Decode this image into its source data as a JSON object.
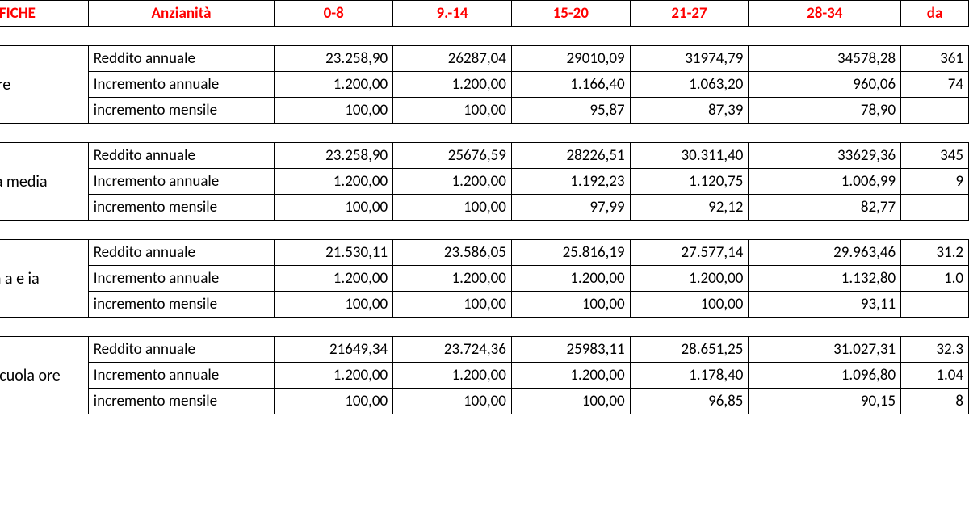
{
  "header": {
    "qualifiche": "LIFICHE",
    "anzianita": "Anzianità",
    "cols": [
      "0-8",
      "9.-14",
      "15-20",
      "21-27",
      "28-34",
      "da"
    ]
  },
  "row_labels": {
    "reddito": "Reddito annuale",
    "incr_ann": "Incremento annuale",
    "incr_men": "incremento mensile"
  },
  "groups": [
    {
      "qual": "nte\na\nriore",
      "reddito": [
        "23.258,90",
        "26287,04",
        "29010,09",
        "31974,79",
        "34578,28",
        "361"
      ],
      "incr_ann": [
        "1.200,00",
        "1.200,00",
        "1.166,40",
        "1.063,20",
        "960,06",
        "74"
      ],
      "incr_men": [
        "100,00",
        "100,00",
        "95,87",
        "87,39",
        "78,90",
        ""
      ]
    },
    {
      "qual": "ocente\nla media",
      "reddito": [
        "23.258,90",
        "25676,59",
        "28226,51",
        "30.311,40",
        "33629,36",
        "345"
      ],
      "incr_ann": [
        "1.200,00",
        "1.200,00",
        "1.192,23",
        "1.120,75",
        "1.006,99",
        "9"
      ],
      "incr_men": [
        "100,00",
        "100,00",
        "97,99",
        "92,12",
        "82,77",
        ""
      ]
    },
    {
      "qual": "te scuola\na e\nia",
      "reddito": [
        "21.530,11",
        "23.586,05",
        "25.816,19",
        "27.577,14",
        "29.963,46",
        "31.2"
      ],
      "incr_ann": [
        "1.200,00",
        "1.200,00",
        "1.200,00",
        "1.200,00",
        "1.132,80",
        "1.0"
      ],
      "incr_men": [
        "100,00",
        "100,00",
        "100,00",
        "100,00",
        "93,11",
        ""
      ]
    },
    {
      "qual": "te\nnato scuola\nore",
      "reddito": [
        "21649,34",
        "23.724,36",
        "25983,11",
        "28.651,25",
        "31.027,31",
        "32.3"
      ],
      "incr_ann": [
        "1.200,00",
        "1.200,00",
        "1.200,00",
        "1.178,40",
        "1.096,80",
        "1.04"
      ],
      "incr_men": [
        "100,00",
        "100,00",
        "100,00",
        "96,85",
        "90,15",
        "8"
      ]
    }
  ],
  "style": {
    "header_color": "#ff0000",
    "border_color": "#000000",
    "background": "#ffffff",
    "font_family": "Calibri, Arial, sans-serif",
    "header_fontsize": 19,
    "cell_fontsize": 19
  }
}
